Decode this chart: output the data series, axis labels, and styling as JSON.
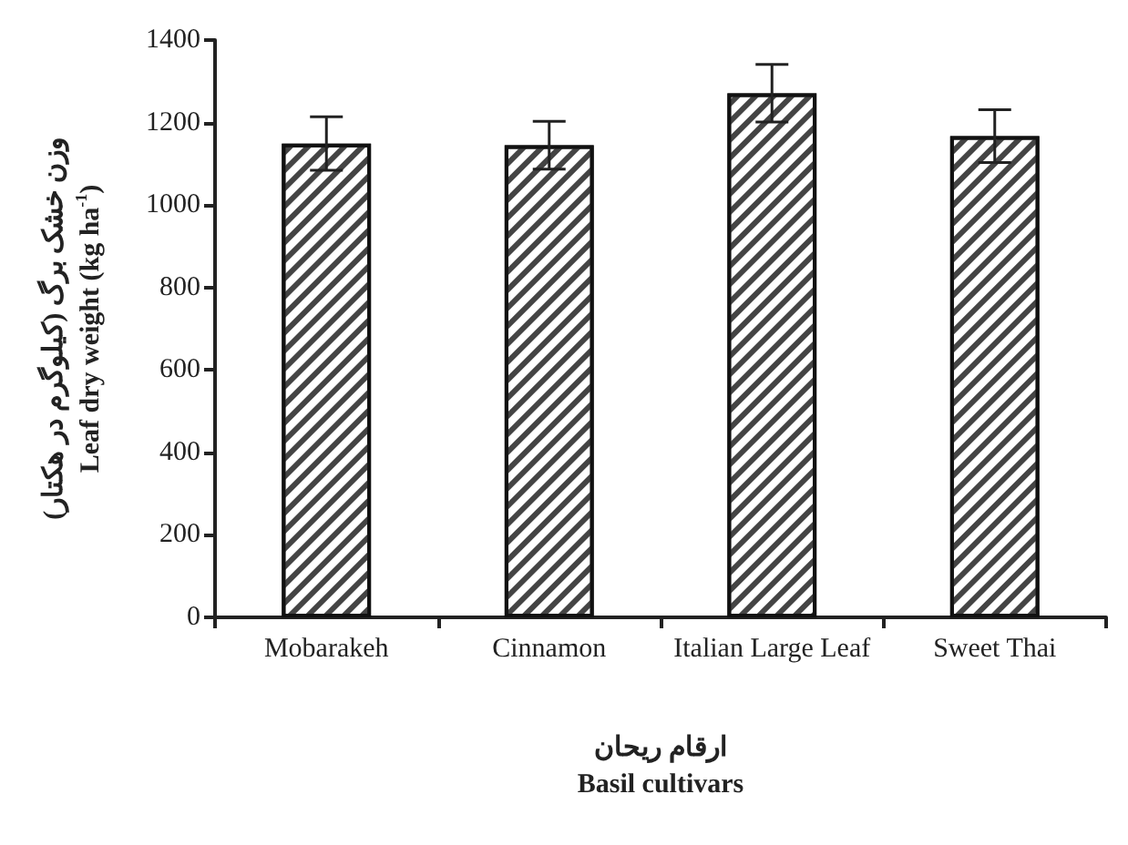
{
  "chart_data": {
    "type": "bar",
    "categories": [
      "Mobarakeh",
      "Cinnamon",
      "Italian Large Leaf",
      "Sweet Thai"
    ],
    "values": [
      1149,
      1145,
      1271,
      1167
    ],
    "errors": [
      65,
      58,
      70,
      64
    ],
    "color": "#ffffff",
    "xlabel": "ارقام ریحان\nBasil cultivars",
    "ylabel": "وزن خشک برگ (کیلوگرم در هکتار)\nLeaf dry weight (kg ha$^{-1}$)",
    "ylim": [
      0,
      1400
    ],
    "yticks": [
      0,
      200,
      400,
      600,
      800,
      1000,
      1200,
      1400
    ],
    "grid": false
  }
}
